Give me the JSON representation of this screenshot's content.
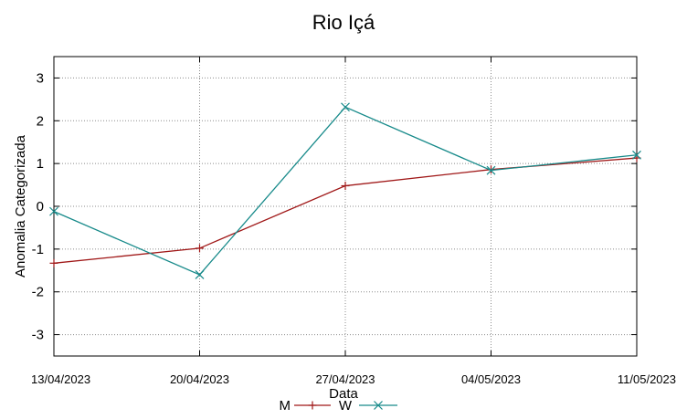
{
  "chart_data": {
    "type": "line",
    "title": "Rio Içá",
    "xlabel": "Data",
    "ylabel": "Anomalia Categorizada",
    "categories": [
      "13/04/2023",
      "20/04/2023",
      "27/04/2023",
      "04/05/2023",
      "11/05/2023"
    ],
    "ylim": [
      -3.5,
      3.5
    ],
    "yticks": [
      -3,
      -2,
      -1,
      0,
      1,
      2,
      3
    ],
    "ytick_labels": [
      "-3",
      "-2",
      "-1",
      "0",
      "1",
      "2",
      "3"
    ],
    "grid": true,
    "legend_position": "bottom-center",
    "series": [
      {
        "name": "M",
        "color": "#a01818",
        "marker": "plus",
        "values": [
          -1.33,
          -0.98,
          0.48,
          0.86,
          1.13
        ]
      },
      {
        "name": "W",
        "color": "#178a8a",
        "marker": "cross",
        "values": [
          -0.12,
          -1.6,
          2.32,
          0.84,
          1.2
        ]
      }
    ]
  }
}
